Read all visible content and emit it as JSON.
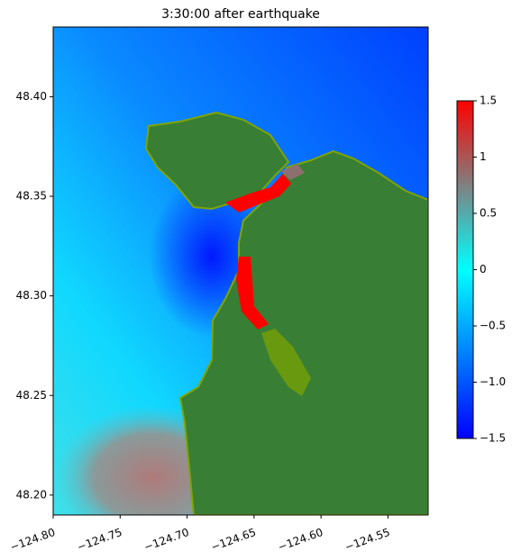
{
  "chart_data": {
    "type": "map",
    "title": "3:30:00 after earthquake",
    "xlim": [
      -124.8,
      -124.52
    ],
    "ylim": [
      48.19,
      48.435
    ],
    "xticks": [
      {
        "value": -124.8,
        "label": "−124.80"
      },
      {
        "value": -124.75,
        "label": "−124.75"
      },
      {
        "value": -124.7,
        "label": "−124.70"
      },
      {
        "value": -124.65,
        "label": "−124.65"
      },
      {
        "value": -124.6,
        "label": "−124.60"
      },
      {
        "value": -124.55,
        "label": "−124.55"
      }
    ],
    "yticks": [
      {
        "value": 48.2,
        "label": "48.20"
      },
      {
        "value": 48.25,
        "label": "48.25"
      },
      {
        "value": 48.3,
        "label": "48.30"
      },
      {
        "value": 48.35,
        "label": "48.35"
      },
      {
        "value": 48.4,
        "label": "48.40"
      }
    ],
    "colorbar": {
      "lim": [
        -1.5,
        1.5
      ],
      "ticks": [
        {
          "value": -1.5,
          "label": "−1.5"
        },
        {
          "value": -1.0,
          "label": "−1.0"
        },
        {
          "value": -0.5,
          "label": "−0.5"
        },
        0.0,
        0.5,
        1.0,
        1.5
      ],
      "colormap": [
        {
          "value": -1.5,
          "color": "#0000ff"
        },
        {
          "value": 0.0,
          "color": "#00ffff"
        },
        {
          "value": 0.75,
          "color": "#808080"
        },
        {
          "value": 1.5,
          "color": "#ff0000"
        }
      ]
    }
  }
}
